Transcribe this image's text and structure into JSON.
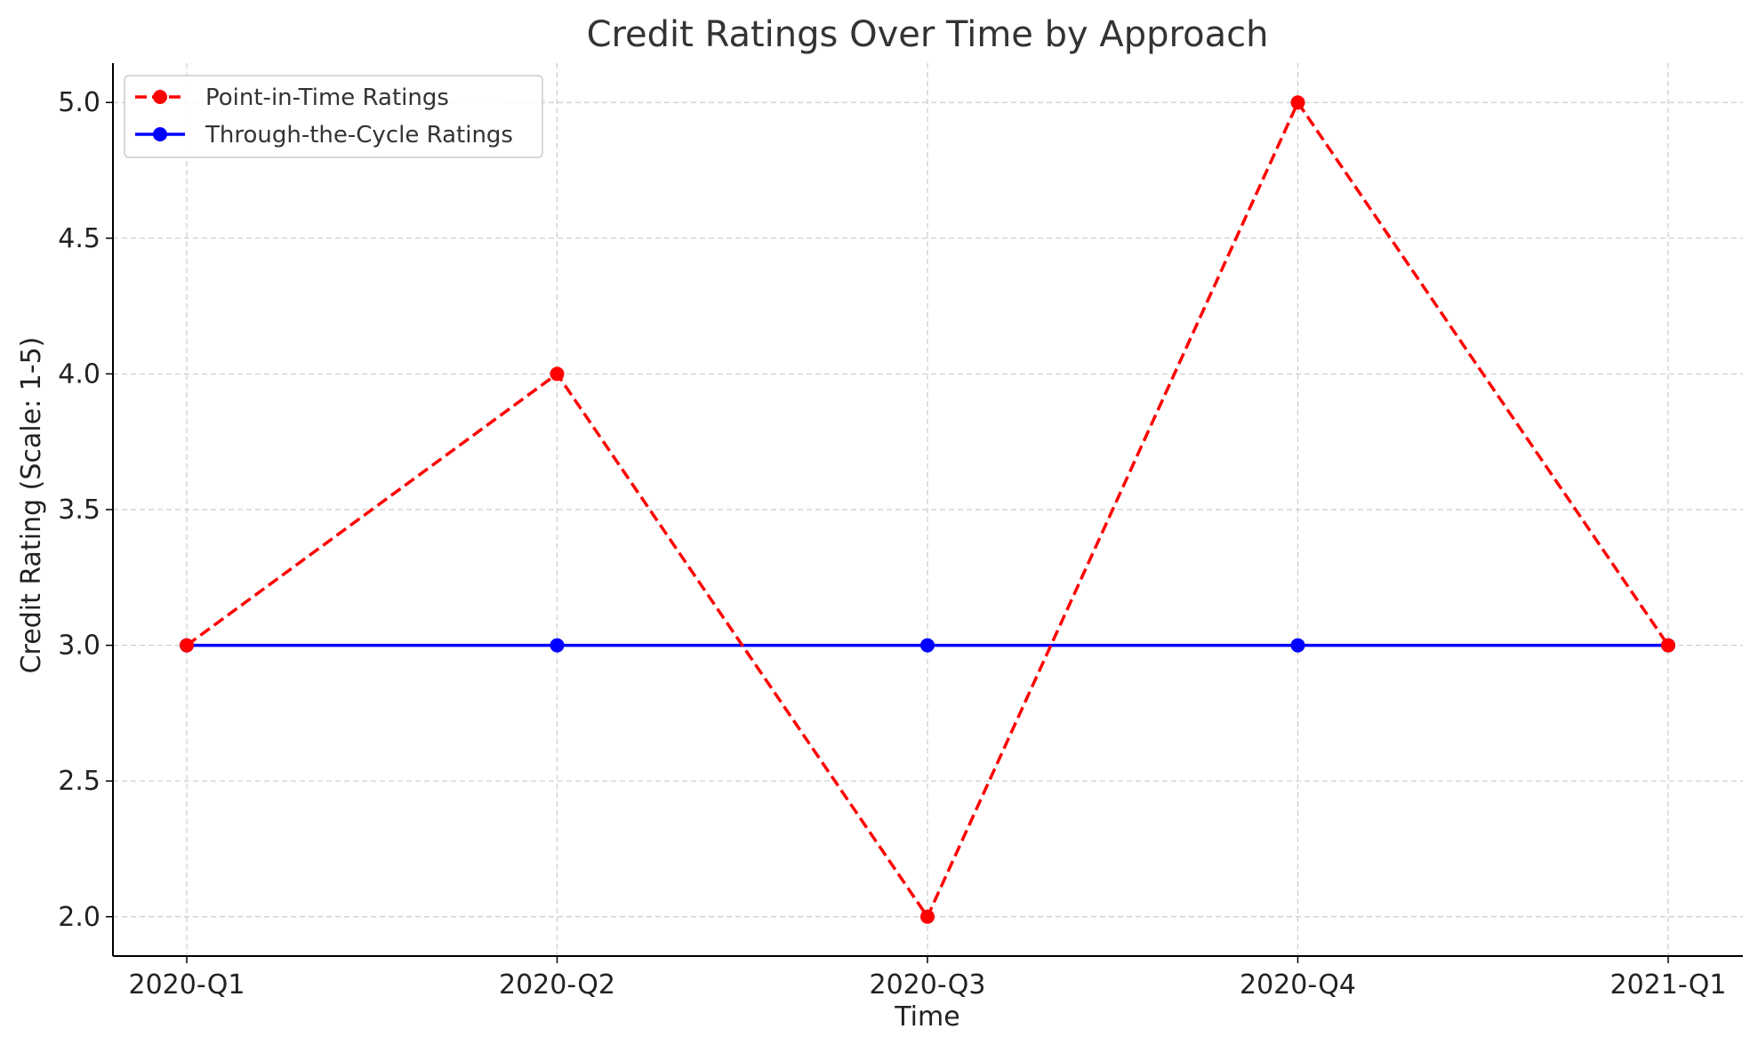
{
  "chart_data": {
    "type": "line",
    "title": "Credit Ratings Over Time by Approach",
    "xlabel": "Time",
    "ylabel": "Credit Rating (Scale: 1-5)",
    "categories": [
      "2020-Q1",
      "2020-Q2",
      "2020-Q3",
      "2020-Q4",
      "2021-Q1"
    ],
    "ylim": [
      1.855,
      5.145
    ],
    "yticks": [
      2.0,
      2.5,
      3.0,
      3.5,
      4.0,
      4.5,
      5.0
    ],
    "ytick_labels": [
      "2.0",
      "2.5",
      "3.0",
      "3.5",
      "4.0",
      "4.5",
      "5.0"
    ],
    "grid": true,
    "legend_position": "top-left",
    "series": [
      {
        "name": "Point-in-Time Ratings",
        "values": [
          3,
          4,
          2,
          5,
          3
        ],
        "color": "#ff0000",
        "line_style": "dashed",
        "marker": "circle"
      },
      {
        "name": "Through-the-Cycle Ratings",
        "values": [
          3,
          3,
          3,
          3,
          3
        ],
        "color": "#0000ff",
        "line_style": "solid",
        "marker": "circle"
      }
    ]
  }
}
